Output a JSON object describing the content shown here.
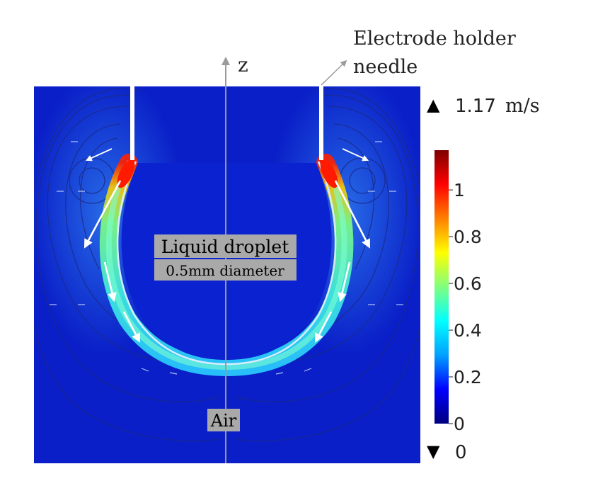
{
  "annotations": {
    "axis_label": "z",
    "holder_line1": "Electrode holder",
    "holder_line2": "needle",
    "droplet_line1": "Liquid droplet",
    "droplet_line2": "0.5mm diameter",
    "air_label": "Air"
  },
  "colorbar": {
    "max_label": "1.17",
    "unit": "m/s",
    "min_label": "0",
    "ticks": [
      {
        "value": 1.0,
        "label": "1"
      },
      {
        "value": 0.8,
        "label": "0.8"
      },
      {
        "value": 0.6,
        "label": "0.6"
      },
      {
        "value": 0.4,
        "label": "0.4"
      },
      {
        "value": 0.2,
        "label": "0.2"
      },
      {
        "value": 0.0,
        "label": "0"
      }
    ],
    "range": [
      0,
      1.17
    ],
    "colors": [
      "#00007f",
      "#0000ff",
      "#00a0ff",
      "#00ffff",
      "#7fff7f",
      "#ffff00",
      "#ff8000",
      "#ff0000",
      "#7f0000"
    ]
  },
  "colors": {
    "background_field": "#0a1fc8",
    "axis": "#9a9a9a",
    "label_box": "#a9a9a9"
  }
}
